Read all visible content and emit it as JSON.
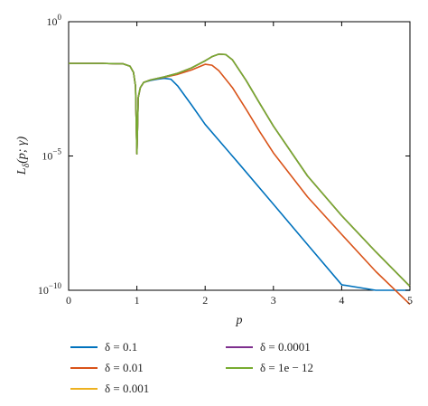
{
  "chart_data": {
    "type": "line",
    "xlabel": "p",
    "ylabel": "L_δ(p; γ)",
    "xlim": [
      0,
      5
    ],
    "ylim": [
      1e-10,
      1
    ],
    "yscale": "log",
    "grid": false,
    "legend_position": "bottom",
    "x_ticks": [
      "0",
      "1",
      "2",
      "3",
      "4",
      "5"
    ],
    "y_ticks": [
      {
        "value": 1,
        "mantissa": "10",
        "exp": "0"
      },
      {
        "value": 1e-05,
        "mantissa": "10",
        "exp": "−5"
      },
      {
        "value": 1e-10,
        "mantissa": "10",
        "exp": "−10"
      }
    ],
    "series": [
      {
        "name": "δ = 0.1",
        "color": "#0072BD",
        "x": [
          0,
          0.5,
          0.8,
          0.9,
          0.95,
          0.98,
          1.0,
          1.02,
          1.05,
          1.1,
          1.2,
          1.3,
          1.4,
          1.5,
          1.6,
          1.8,
          2.0,
          2.5,
          3.0,
          3.5,
          4.0,
          4.5,
          5.0
        ],
        "y": [
          0.028,
          0.028,
          0.027,
          0.022,
          0.013,
          0.004,
          1.2e-05,
          0.0015,
          0.0035,
          0.0055,
          0.0065,
          0.0072,
          0.0078,
          0.0072,
          0.004,
          0.0008,
          0.00015,
          5e-06,
          1.6e-07,
          5e-09,
          1.6e-10,
          1e-10,
          1e-10
        ]
      },
      {
        "name": "δ = 0.01",
        "color": "#D95319",
        "x": [
          0,
          0.5,
          0.8,
          0.9,
          0.95,
          0.98,
          1.0,
          1.02,
          1.05,
          1.1,
          1.2,
          1.4,
          1.6,
          1.8,
          2.0,
          2.1,
          2.2,
          2.4,
          2.6,
          2.8,
          3.0,
          3.5,
          4.0,
          4.5,
          5.0
        ],
        "y": [
          0.028,
          0.028,
          0.027,
          0.022,
          0.013,
          0.004,
          1.2e-05,
          0.0015,
          0.0035,
          0.0055,
          0.0068,
          0.0085,
          0.011,
          0.016,
          0.026,
          0.024,
          0.015,
          0.0035,
          0.00055,
          8e-05,
          1.3e-05,
          3e-07,
          1.2e-08,
          5e-10,
          3e-11
        ]
      },
      {
        "name": "δ = 0.001",
        "color": "#EDB120",
        "x": [
          0,
          0.5,
          0.8,
          0.9,
          0.95,
          0.98,
          1.0,
          1.02,
          1.05,
          1.1,
          1.2,
          1.4,
          1.6,
          1.8,
          2.0,
          2.1,
          2.2,
          2.3,
          2.4,
          2.6,
          2.8,
          3.0,
          3.5,
          4.0,
          4.5,
          5.0
        ],
        "y": [
          0.028,
          0.028,
          0.027,
          0.022,
          0.013,
          0.004,
          1.2e-05,
          0.0015,
          0.0035,
          0.0055,
          0.0068,
          0.0088,
          0.012,
          0.019,
          0.035,
          0.05,
          0.062,
          0.06,
          0.038,
          0.0065,
          0.0009,
          0.00013,
          1.8e-06,
          6e-08,
          2.7e-09,
          1.4e-10
        ]
      },
      {
        "name": "δ = 0.0001",
        "color": "#7E2F8E",
        "x": [
          0,
          0.5,
          0.8,
          0.9,
          0.95,
          0.98,
          1.0,
          1.02,
          1.05,
          1.1,
          1.2,
          1.4,
          1.6,
          1.8,
          2.0,
          2.1,
          2.2,
          2.3,
          2.4,
          2.6,
          2.8,
          3.0,
          3.5,
          4.0,
          4.5,
          5.0
        ],
        "y": [
          0.028,
          0.028,
          0.027,
          0.022,
          0.013,
          0.004,
          1.2e-05,
          0.0015,
          0.0035,
          0.0055,
          0.0068,
          0.0088,
          0.012,
          0.019,
          0.035,
          0.05,
          0.062,
          0.06,
          0.038,
          0.0065,
          0.0009,
          0.00013,
          1.8e-06,
          6e-08,
          2.7e-09,
          1.4e-10
        ]
      },
      {
        "name": "δ = 1e − 12",
        "color": "#77AC30",
        "x": [
          0,
          0.5,
          0.8,
          0.9,
          0.95,
          0.98,
          1.0,
          1.02,
          1.05,
          1.1,
          1.2,
          1.4,
          1.6,
          1.8,
          2.0,
          2.1,
          2.2,
          2.3,
          2.4,
          2.6,
          2.8,
          3.0,
          3.5,
          4.0,
          4.5,
          5.0
        ],
        "y": [
          0.028,
          0.028,
          0.027,
          0.022,
          0.013,
          0.004,
          1.2e-05,
          0.0015,
          0.0035,
          0.0055,
          0.0068,
          0.0088,
          0.012,
          0.019,
          0.035,
          0.05,
          0.062,
          0.06,
          0.038,
          0.0065,
          0.0009,
          0.00013,
          1.8e-06,
          6e-08,
          2.7e-09,
          1.4e-10
        ]
      }
    ]
  }
}
